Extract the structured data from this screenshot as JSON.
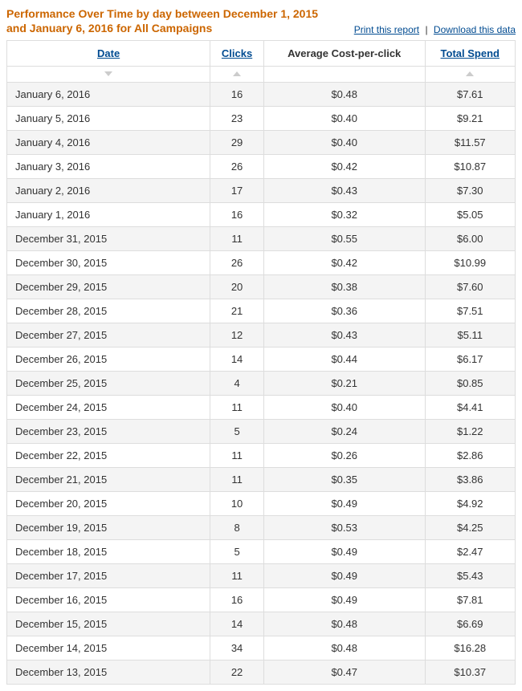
{
  "header": {
    "title": "Performance Over Time by day between December 1, 2015 and January 6, 2016 for All Campaigns",
    "print_label": "Print this report",
    "download_label": "Download this data"
  },
  "table": {
    "columns": [
      {
        "key": "date",
        "label": "Date",
        "sortable": true,
        "align": "left",
        "sort_dir": "down"
      },
      {
        "key": "clicks",
        "label": "Clicks",
        "sortable": true,
        "align": "center",
        "sort_dir": "up"
      },
      {
        "key": "cpc",
        "label": "Average Cost-per-click",
        "sortable": false,
        "align": "center",
        "sort_dir": ""
      },
      {
        "key": "spend",
        "label": "Total Spend",
        "sortable": true,
        "align": "center",
        "sort_dir": "up"
      }
    ],
    "rows": [
      {
        "date": "January 6, 2016",
        "clicks": "16",
        "cpc": "$0.48",
        "spend": "$7.61"
      },
      {
        "date": "January 5, 2016",
        "clicks": "23",
        "cpc": "$0.40",
        "spend": "$9.21"
      },
      {
        "date": "January 4, 2016",
        "clicks": "29",
        "cpc": "$0.40",
        "spend": "$11.57"
      },
      {
        "date": "January 3, 2016",
        "clicks": "26",
        "cpc": "$0.42",
        "spend": "$10.87"
      },
      {
        "date": "January 2, 2016",
        "clicks": "17",
        "cpc": "$0.43",
        "spend": "$7.30"
      },
      {
        "date": "January 1, 2016",
        "clicks": "16",
        "cpc": "$0.32",
        "spend": "$5.05"
      },
      {
        "date": "December 31, 2015",
        "clicks": "11",
        "cpc": "$0.55",
        "spend": "$6.00"
      },
      {
        "date": "December 30, 2015",
        "clicks": "26",
        "cpc": "$0.42",
        "spend": "$10.99"
      },
      {
        "date": "December 29, 2015",
        "clicks": "20",
        "cpc": "$0.38",
        "spend": "$7.60"
      },
      {
        "date": "December 28, 2015",
        "clicks": "21",
        "cpc": "$0.36",
        "spend": "$7.51"
      },
      {
        "date": "December 27, 2015",
        "clicks": "12",
        "cpc": "$0.43",
        "spend": "$5.11"
      },
      {
        "date": "December 26, 2015",
        "clicks": "14",
        "cpc": "$0.44",
        "spend": "$6.17"
      },
      {
        "date": "December 25, 2015",
        "clicks": "4",
        "cpc": "$0.21",
        "spend": "$0.85"
      },
      {
        "date": "December 24, 2015",
        "clicks": "11",
        "cpc": "$0.40",
        "spend": "$4.41"
      },
      {
        "date": "December 23, 2015",
        "clicks": "5",
        "cpc": "$0.24",
        "spend": "$1.22"
      },
      {
        "date": "December 22, 2015",
        "clicks": "11",
        "cpc": "$0.26",
        "spend": "$2.86"
      },
      {
        "date": "December 21, 2015",
        "clicks": "11",
        "cpc": "$0.35",
        "spend": "$3.86"
      },
      {
        "date": "December 20, 2015",
        "clicks": "10",
        "cpc": "$0.49",
        "spend": "$4.92"
      },
      {
        "date": "December 19, 2015",
        "clicks": "8",
        "cpc": "$0.53",
        "spend": "$4.25"
      },
      {
        "date": "December 18, 2015",
        "clicks": "5",
        "cpc": "$0.49",
        "spend": "$2.47"
      },
      {
        "date": "December 17, 2015",
        "clicks": "11",
        "cpc": "$0.49",
        "spend": "$5.43"
      },
      {
        "date": "December 16, 2015",
        "clicks": "16",
        "cpc": "$0.49",
        "spend": "$7.81"
      },
      {
        "date": "December 15, 2015",
        "clicks": "14",
        "cpc": "$0.48",
        "spend": "$6.69"
      },
      {
        "date": "December 14, 2015",
        "clicks": "34",
        "cpc": "$0.48",
        "spend": "$16.28"
      },
      {
        "date": "December 13, 2015",
        "clicks": "22",
        "cpc": "$0.47",
        "spend": "$10.37"
      }
    ]
  },
  "colors": {
    "title": "#cc6600",
    "link": "#004b91",
    "grid": "#dddddd",
    "row_alt": "#f4f4f4",
    "text": "#333333"
  }
}
